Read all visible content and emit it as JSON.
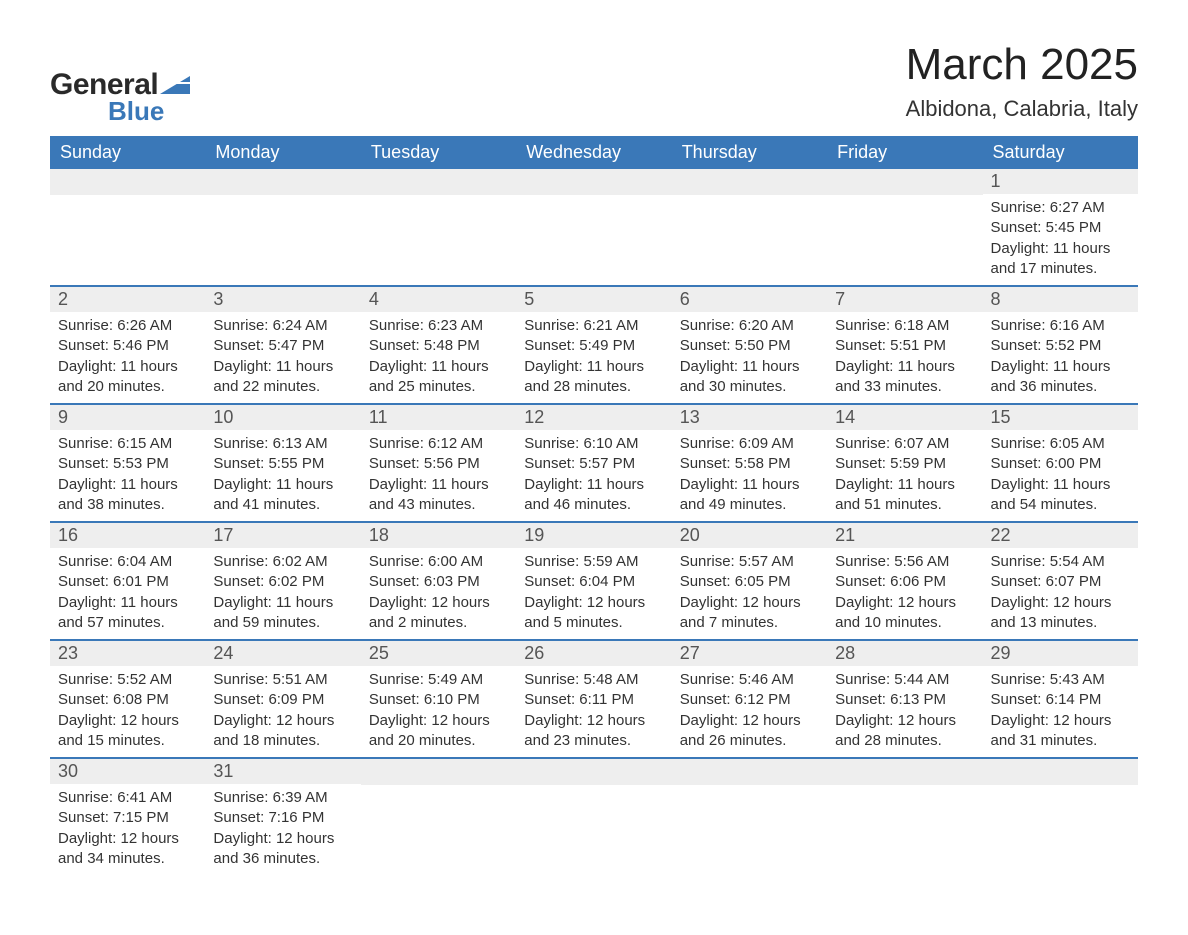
{
  "brand": {
    "name1": "General",
    "name2": "Blue",
    "accent_color": "#3a78b8"
  },
  "title": "March 2025",
  "location": "Albidona, Calabria, Italy",
  "colors": {
    "header_bg": "#3a78b8",
    "header_text": "#ffffff",
    "daynum_bg": "#eeeeee",
    "row_divider": "#3a78b8",
    "body_text": "#333333",
    "page_bg": "#ffffff"
  },
  "typography": {
    "title_fontsize": 44,
    "location_fontsize": 22,
    "day_header_fontsize": 18,
    "daynum_fontsize": 18,
    "body_fontsize": 15
  },
  "day_headers": [
    "Sunday",
    "Monday",
    "Tuesday",
    "Wednesday",
    "Thursday",
    "Friday",
    "Saturday"
  ],
  "weeks": [
    [
      null,
      null,
      null,
      null,
      null,
      null,
      {
        "n": 1,
        "sunrise": "6:27 AM",
        "sunset": "5:45 PM",
        "daylight": "11 hours and 17 minutes."
      }
    ],
    [
      {
        "n": 2,
        "sunrise": "6:26 AM",
        "sunset": "5:46 PM",
        "daylight": "11 hours and 20 minutes."
      },
      {
        "n": 3,
        "sunrise": "6:24 AM",
        "sunset": "5:47 PM",
        "daylight": "11 hours and 22 minutes."
      },
      {
        "n": 4,
        "sunrise": "6:23 AM",
        "sunset": "5:48 PM",
        "daylight": "11 hours and 25 minutes."
      },
      {
        "n": 5,
        "sunrise": "6:21 AM",
        "sunset": "5:49 PM",
        "daylight": "11 hours and 28 minutes."
      },
      {
        "n": 6,
        "sunrise": "6:20 AM",
        "sunset": "5:50 PM",
        "daylight": "11 hours and 30 minutes."
      },
      {
        "n": 7,
        "sunrise": "6:18 AM",
        "sunset": "5:51 PM",
        "daylight": "11 hours and 33 minutes."
      },
      {
        "n": 8,
        "sunrise": "6:16 AM",
        "sunset": "5:52 PM",
        "daylight": "11 hours and 36 minutes."
      }
    ],
    [
      {
        "n": 9,
        "sunrise": "6:15 AM",
        "sunset": "5:53 PM",
        "daylight": "11 hours and 38 minutes."
      },
      {
        "n": 10,
        "sunrise": "6:13 AM",
        "sunset": "5:55 PM",
        "daylight": "11 hours and 41 minutes."
      },
      {
        "n": 11,
        "sunrise": "6:12 AM",
        "sunset": "5:56 PM",
        "daylight": "11 hours and 43 minutes."
      },
      {
        "n": 12,
        "sunrise": "6:10 AM",
        "sunset": "5:57 PM",
        "daylight": "11 hours and 46 minutes."
      },
      {
        "n": 13,
        "sunrise": "6:09 AM",
        "sunset": "5:58 PM",
        "daylight": "11 hours and 49 minutes."
      },
      {
        "n": 14,
        "sunrise": "6:07 AM",
        "sunset": "5:59 PM",
        "daylight": "11 hours and 51 minutes."
      },
      {
        "n": 15,
        "sunrise": "6:05 AM",
        "sunset": "6:00 PM",
        "daylight": "11 hours and 54 minutes."
      }
    ],
    [
      {
        "n": 16,
        "sunrise": "6:04 AM",
        "sunset": "6:01 PM",
        "daylight": "11 hours and 57 minutes."
      },
      {
        "n": 17,
        "sunrise": "6:02 AM",
        "sunset": "6:02 PM",
        "daylight": "11 hours and 59 minutes."
      },
      {
        "n": 18,
        "sunrise": "6:00 AM",
        "sunset": "6:03 PM",
        "daylight": "12 hours and 2 minutes."
      },
      {
        "n": 19,
        "sunrise": "5:59 AM",
        "sunset": "6:04 PM",
        "daylight": "12 hours and 5 minutes."
      },
      {
        "n": 20,
        "sunrise": "5:57 AM",
        "sunset": "6:05 PM",
        "daylight": "12 hours and 7 minutes."
      },
      {
        "n": 21,
        "sunrise": "5:56 AM",
        "sunset": "6:06 PM",
        "daylight": "12 hours and 10 minutes."
      },
      {
        "n": 22,
        "sunrise": "5:54 AM",
        "sunset": "6:07 PM",
        "daylight": "12 hours and 13 minutes."
      }
    ],
    [
      {
        "n": 23,
        "sunrise": "5:52 AM",
        "sunset": "6:08 PM",
        "daylight": "12 hours and 15 minutes."
      },
      {
        "n": 24,
        "sunrise": "5:51 AM",
        "sunset": "6:09 PM",
        "daylight": "12 hours and 18 minutes."
      },
      {
        "n": 25,
        "sunrise": "5:49 AM",
        "sunset": "6:10 PM",
        "daylight": "12 hours and 20 minutes."
      },
      {
        "n": 26,
        "sunrise": "5:48 AM",
        "sunset": "6:11 PM",
        "daylight": "12 hours and 23 minutes."
      },
      {
        "n": 27,
        "sunrise": "5:46 AM",
        "sunset": "6:12 PM",
        "daylight": "12 hours and 26 minutes."
      },
      {
        "n": 28,
        "sunrise": "5:44 AM",
        "sunset": "6:13 PM",
        "daylight": "12 hours and 28 minutes."
      },
      {
        "n": 29,
        "sunrise": "5:43 AM",
        "sunset": "6:14 PM",
        "daylight": "12 hours and 31 minutes."
      }
    ],
    [
      {
        "n": 30,
        "sunrise": "6:41 AM",
        "sunset": "7:15 PM",
        "daylight": "12 hours and 34 minutes."
      },
      {
        "n": 31,
        "sunrise": "6:39 AM",
        "sunset": "7:16 PM",
        "daylight": "12 hours and 36 minutes."
      },
      null,
      null,
      null,
      null,
      null
    ]
  ],
  "labels": {
    "sunrise": "Sunrise:",
    "sunset": "Sunset:",
    "daylight": "Daylight:"
  }
}
